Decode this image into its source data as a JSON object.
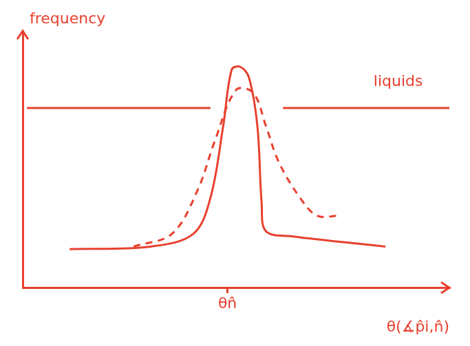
{
  "chart_data": {
    "type": "line",
    "x_label": "θ(∡p̂i,n̂)",
    "y_label": "frequency",
    "xlim": [
      0,
      100
    ],
    "ylim": [
      0,
      100
    ],
    "xticks": [
      {
        "value": 48,
        "label": "θn̂"
      }
    ],
    "yticks": [],
    "tick_labels": "x",
    "grid": false,
    "color": "#e8402f",
    "annotations": [
      {
        "text": "liquids",
        "x": 88,
        "y": 80
      }
    ],
    "series": [
      {
        "line_style": "solid",
        "x": [
          1,
          44,
          52,
          61,
          100
        ],
        "values": [
          70,
          70,
          null,
          70,
          70
        ]
      },
      {
        "line_style": "solid",
        "x": [
          11,
          30,
          40,
          44,
          47,
          49,
          51,
          53,
          55,
          56,
          57,
          63,
          85
        ],
        "values": [
          15,
          16,
          21,
          35,
          63,
          85,
          86,
          82,
          63,
          33,
          22,
          20,
          16
        ]
      },
      {
        "line_style": "dashed",
        "x": [
          26,
          35,
          41,
          45,
          50,
          54,
          57,
          60,
          65,
          69,
          74
        ],
        "values": [
          16,
          21,
          38,
          57,
          77,
          76,
          63,
          49,
          35,
          28,
          28
        ]
      }
    ]
  }
}
